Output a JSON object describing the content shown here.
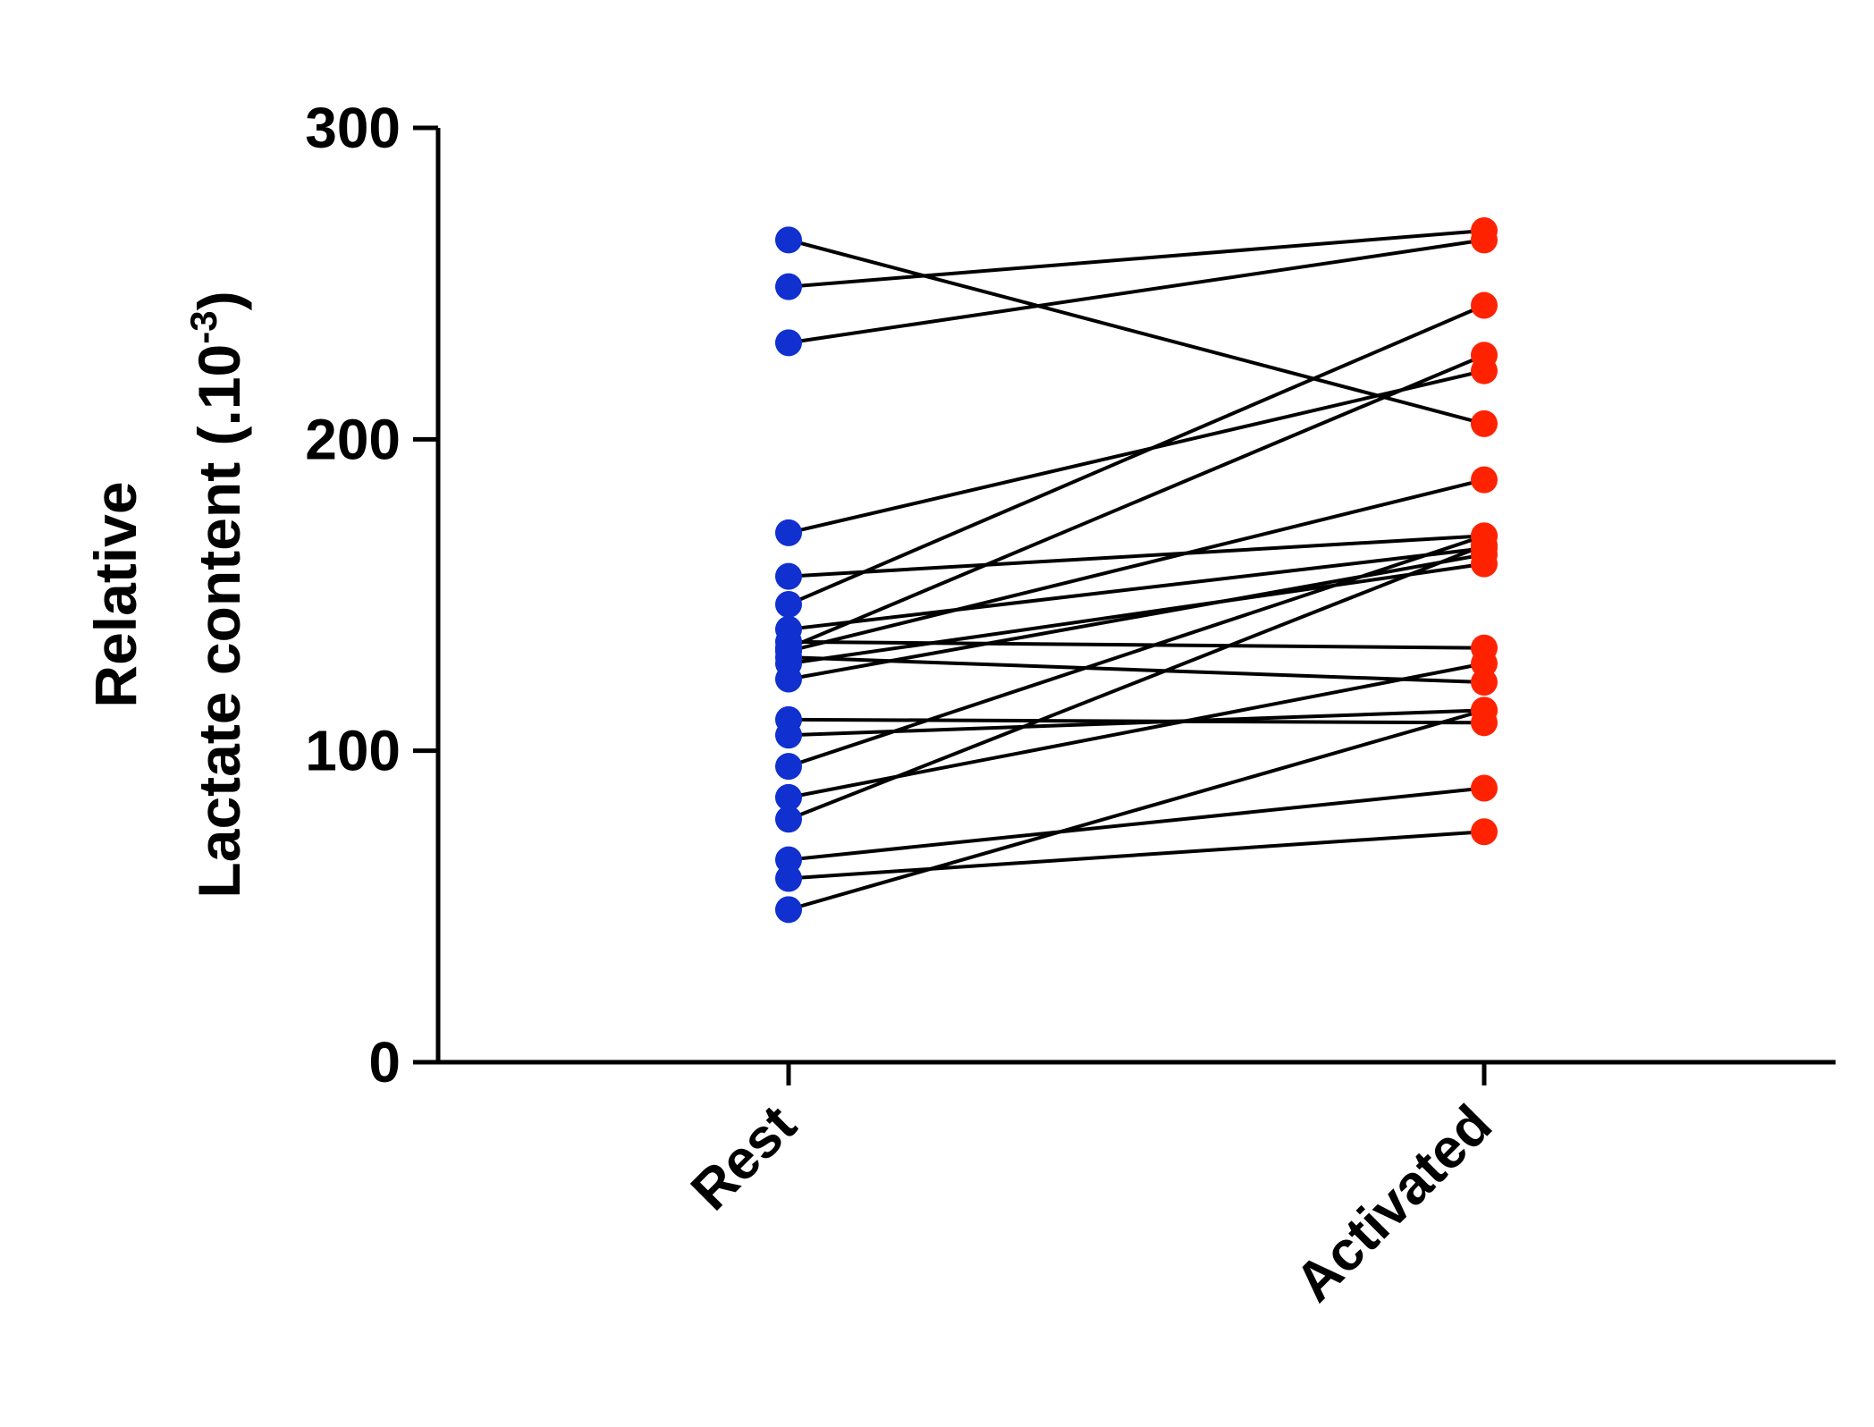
{
  "chart_data": {
    "type": "scatter",
    "subtype": "paired-lines",
    "title": "",
    "ylabel_line1": "Relative",
    "ylabel_line2_main": "Lactate content (.10",
    "ylabel_line2_sup": "-3",
    "ylabel_line2_end": ")",
    "categories": [
      "Rest",
      "Activated"
    ],
    "ylim": [
      0,
      300
    ],
    "yticks": [
      0,
      100,
      200,
      300
    ],
    "grid": false,
    "legend": "none",
    "colors": {
      "Rest": "#1030d0",
      "Activated": "#ff2200",
      "lines": "#000000",
      "axis": "#000000"
    },
    "pairs": [
      {
        "rest": 264,
        "activated": 205
      },
      {
        "rest": 249,
        "activated": 267
      },
      {
        "rest": 231,
        "activated": 264
      },
      {
        "rest": 170,
        "activated": 222
      },
      {
        "rest": 156,
        "activated": 169
      },
      {
        "rest": 147,
        "activated": 243
      },
      {
        "rest": 139,
        "activated": 165
      },
      {
        "rest": 135,
        "activated": 133
      },
      {
        "rest": 133,
        "activated": 227
      },
      {
        "rest": 132,
        "activated": 187
      },
      {
        "rest": 130,
        "activated": 122
      },
      {
        "rest": 128,
        "activated": 160
      },
      {
        "rest": 123,
        "activated": 163
      },
      {
        "rest": 110,
        "activated": 109
      },
      {
        "rest": 105,
        "activated": 113
      },
      {
        "rest": 95,
        "activated": 169
      },
      {
        "rest": 85,
        "activated": 128
      },
      {
        "rest": 78,
        "activated": 166
      },
      {
        "rest": 65,
        "activated": 88
      },
      {
        "rest": 59,
        "activated": 74
      },
      {
        "rest": 49,
        "activated": 113
      }
    ]
  }
}
